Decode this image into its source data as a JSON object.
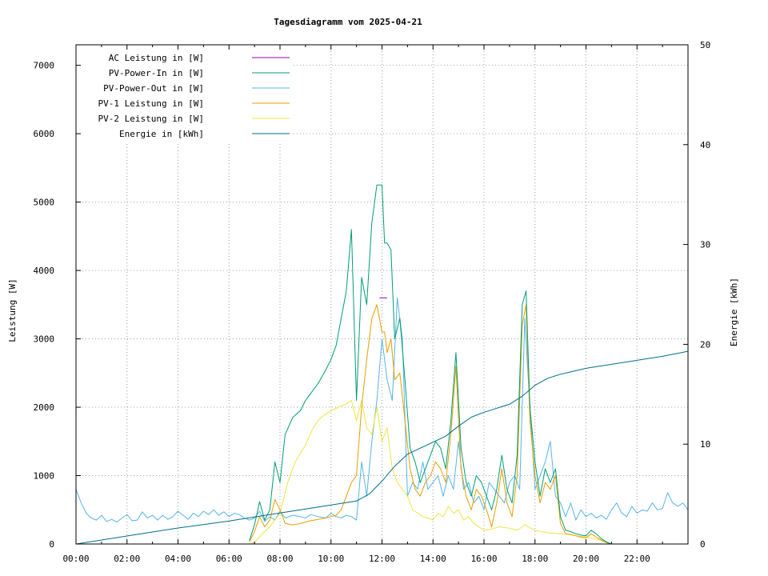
{
  "chart_data": {
    "type": "line",
    "title": "Tagesdiagramm vom 2025-04-21",
    "ylabel": "Leistung [W]",
    "y2label": "Energie [kWh]",
    "xlim": [
      0,
      24
    ],
    "ylim": [
      0,
      7300
    ],
    "y2lim": [
      0,
      50
    ],
    "x_ticks": [
      "00:00",
      "02:00",
      "04:00",
      "06:00",
      "08:00",
      "10:00",
      "12:00",
      "14:00",
      "16:00",
      "18:00",
      "20:00",
      "22:00"
    ],
    "y_ticks": [
      0,
      1000,
      2000,
      3000,
      4000,
      5000,
      6000,
      7000
    ],
    "y2_ticks": [
      0,
      10,
      20,
      30,
      40,
      50
    ],
    "grid": true,
    "legend": "top-left",
    "series": [
      {
        "name": "AC Leistung in [W]",
        "color": "#9400d3",
        "axis": "y",
        "x": [
          11.9,
          12.2
        ],
        "y": [
          3600,
          3600
        ]
      },
      {
        "name": "PV-Power-In in [W]",
        "color": "#009e73",
        "axis": "y",
        "x": [
          6.8,
          7.0,
          7.2,
          7.4,
          7.6,
          7.8,
          8.0,
          8.2,
          8.5,
          8.8,
          9.0,
          9.2,
          9.5,
          9.8,
          10.0,
          10.2,
          10.4,
          10.6,
          10.8,
          11.0,
          11.2,
          11.4,
          11.6,
          11.8,
          12.0,
          12.1,
          12.2,
          12.35,
          12.5,
          12.7,
          12.9,
          13.1,
          13.3,
          13.5,
          13.7,
          13.9,
          14.1,
          14.3,
          14.5,
          14.7,
          14.9,
          15.1,
          15.3,
          15.5,
          15.7,
          15.9,
          16.1,
          16.3,
          16.5,
          16.7,
          16.9,
          17.1,
          17.3,
          17.5,
          17.65,
          17.8,
          18.0,
          18.2,
          18.4,
          18.6,
          18.8,
          19.0,
          19.2,
          19.4,
          19.6,
          19.8,
          20.0,
          20.2,
          20.4,
          20.6,
          20.8,
          21.0
        ],
        "y": [
          50,
          280,
          620,
          350,
          500,
          1200,
          900,
          1600,
          1850,
          1950,
          2100,
          2200,
          2350,
          2550,
          2700,
          2900,
          3300,
          3700,
          4600,
          2100,
          3900,
          3500,
          4700,
          5250,
          5250,
          4400,
          4400,
          4300,
          3000,
          3300,
          2400,
          1400,
          1200,
          900,
          1100,
          1300,
          1500,
          1400,
          1100,
          1800,
          2800,
          1400,
          900,
          700,
          1000,
          900,
          700,
          500,
          800,
          1300,
          800,
          600,
          1300,
          3500,
          3700,
          2000,
          1200,
          700,
          1100,
          900,
          1100,
          400,
          200,
          180,
          150,
          130,
          120,
          200,
          150,
          80,
          30,
          0
        ]
      },
      {
        "name": "PV-Power-Out in [W]",
        "color": "#56b4e9",
        "axis": "y",
        "x": [
          0.0,
          0.2,
          0.4,
          0.6,
          0.8,
          1.0,
          1.2,
          1.4,
          1.6,
          1.8,
          2.0,
          2.2,
          2.4,
          2.6,
          2.8,
          3.0,
          3.2,
          3.4,
          3.6,
          3.8,
          4.0,
          4.2,
          4.4,
          4.6,
          4.8,
          5.0,
          5.2,
          5.4,
          5.6,
          5.8,
          6.0,
          6.2,
          6.4,
          6.6,
          6.8,
          7.0,
          7.2,
          7.4,
          7.6,
          7.8,
          8.0,
          8.2,
          8.5,
          8.8,
          9.0,
          9.2,
          9.5,
          9.8,
          10.0,
          10.2,
          10.4,
          10.6,
          10.8,
          11.0,
          11.2,
          11.4,
          11.6,
          11.8,
          12.0,
          12.2,
          12.4,
          12.6,
          12.8,
          13.0,
          13.2,
          13.4,
          13.6,
          13.8,
          14.0,
          14.2,
          14.4,
          14.6,
          14.8,
          15.0,
          15.2,
          15.4,
          15.6,
          15.8,
          16.0,
          16.2,
          16.4,
          16.6,
          16.8,
          17.0,
          17.2,
          17.4,
          17.6,
          17.8,
          18.0,
          18.2,
          18.4,
          18.6,
          18.8,
          19.0,
          19.2,
          19.4,
          19.6,
          19.8,
          20.0,
          20.2,
          20.4,
          20.6,
          20.8,
          21.0,
          21.2,
          21.4,
          21.6,
          21.8,
          22.0,
          22.2,
          22.4,
          22.6,
          22.8,
          23.0,
          23.2,
          23.4,
          23.6,
          23.8,
          24.0
        ],
        "y": [
          800,
          600,
          450,
          380,
          350,
          420,
          330,
          360,
          320,
          380,
          430,
          340,
          350,
          470,
          380,
          420,
          350,
          420,
          360,
          400,
          480,
          420,
          360,
          450,
          400,
          480,
          430,
          500,
          420,
          470,
          400,
          450,
          430,
          380,
          350,
          380,
          480,
          330,
          400,
          350,
          480,
          380,
          420,
          400,
          380,
          430,
          400,
          380,
          450,
          400,
          380,
          420,
          400,
          350,
          1200,
          700,
          1500,
          2100,
          3000,
          2400,
          2100,
          3600,
          3000,
          700,
          900,
          800,
          1200,
          800,
          900,
          1000,
          700,
          1000,
          800,
          1500,
          800,
          900,
          600,
          700,
          500,
          900,
          800,
          700,
          600,
          900,
          1000,
          800,
          3300,
          2000,
          800,
          1000,
          1200,
          1500,
          700,
          600,
          400,
          600,
          350,
          500,
          400,
          450,
          380,
          420,
          360,
          500,
          600,
          450,
          400,
          550,
          450,
          500,
          480,
          600,
          500,
          520,
          750,
          600,
          550,
          600,
          500
        ]
      },
      {
        "name": "PV-1 Leistung in [W]",
        "color": "#e69f00",
        "axis": "y",
        "x": [
          6.8,
          7.0,
          7.2,
          7.4,
          7.6,
          7.8,
          8.0,
          8.2,
          8.5,
          8.8,
          9.0,
          9.2,
          9.5,
          9.8,
          10.0,
          10.2,
          10.4,
          10.6,
          10.8,
          11.0,
          11.2,
          11.4,
          11.6,
          11.8,
          12.0,
          12.1,
          12.2,
          12.35,
          12.5,
          12.7,
          12.9,
          13.1,
          13.3,
          13.5,
          13.7,
          13.9,
          14.1,
          14.3,
          14.5,
          14.7,
          14.9,
          15.1,
          15.3,
          15.5,
          15.7,
          15.9,
          16.1,
          16.3,
          16.5,
          16.7,
          16.9,
          17.1,
          17.3,
          17.5,
          17.65,
          17.8,
          18.0,
          18.2,
          18.4,
          18.6,
          18.8,
          19.0,
          19.2,
          19.4,
          19.6,
          19.8,
          20.0,
          20.2,
          20.4,
          20.6,
          20.8,
          21.0
        ],
        "y": [
          30,
          180,
          400,
          250,
          350,
          650,
          500,
          300,
          280,
          300,
          320,
          340,
          360,
          380,
          400,
          420,
          500,
          700,
          900,
          1000,
          2000,
          2700,
          3300,
          3500,
          3100,
          3100,
          2800,
          3000,
          2400,
          2500,
          1800,
          1100,
          800,
          700,
          900,
          1000,
          1200,
          1100,
          900,
          1600,
          2600,
          1100,
          700,
          500,
          800,
          700,
          500,
          250,
          600,
          1100,
          600,
          400,
          1000,
          3200,
          3500,
          1800,
          1000,
          600,
          900,
          800,
          1000,
          300,
          150,
          140,
          120,
          100,
          90,
          150,
          100,
          60,
          20,
          0
        ]
      },
      {
        "name": "PV-2 Leistung in [W]",
        "color": "#f0e442",
        "axis": "y",
        "x": [
          6.8,
          7.0,
          7.3,
          7.6,
          8.0,
          8.3,
          8.6,
          9.0,
          9.3,
          9.6,
          10.0,
          10.3,
          10.6,
          10.8,
          11.0,
          11.2,
          11.4,
          11.6,
          11.8,
          12.0,
          12.2,
          12.4,
          12.6,
          12.8,
          13.0,
          13.2,
          13.4,
          13.6,
          13.8,
          14.0,
          14.2,
          14.4,
          14.6,
          14.8,
          15.0,
          15.2,
          15.4,
          15.6,
          15.8,
          16.0,
          16.3,
          16.6,
          17.0,
          17.3,
          17.6,
          18.0,
          18.3,
          18.6,
          19.0,
          19.3,
          19.6,
          20.0,
          20.3,
          20.6,
          20.8,
          21.0
        ],
        "y": [
          0,
          20,
          150,
          250,
          450,
          900,
          1200,
          1450,
          1700,
          1850,
          1950,
          2000,
          2050,
          2100,
          1800,
          2100,
          1700,
          1600,
          2000,
          1500,
          1700,
          1100,
          900,
          800,
          700,
          500,
          450,
          400,
          380,
          350,
          450,
          400,
          550,
          450,
          500,
          350,
          400,
          300,
          250,
          200,
          220,
          250,
          230,
          200,
          280,
          200,
          180,
          160,
          150,
          140,
          120,
          100,
          80,
          50,
          20,
          0
        ]
      },
      {
        "name": "Energie in [kWh]",
        "color": "#006d8f",
        "axis": "y2",
        "x": [
          0,
          2,
          4,
          6,
          7,
          8,
          9,
          10,
          11,
          11.5,
          12,
          12.5,
          13,
          13.5,
          14,
          14.5,
          15,
          15.5,
          16,
          16.5,
          17,
          17.5,
          18,
          18.5,
          19,
          19.5,
          20,
          20.5,
          21,
          22,
          23,
          24
        ],
        "y": [
          0,
          0.8,
          1.6,
          2.3,
          2.7,
          3.1,
          3.5,
          3.9,
          4.3,
          5.0,
          6.3,
          7.8,
          9.0,
          9.6,
          10.2,
          10.8,
          11.8,
          12.7,
          13.2,
          13.6,
          14.0,
          14.8,
          15.9,
          16.6,
          17.0,
          17.3,
          17.6,
          17.8,
          18.0,
          18.4,
          18.8,
          19.3
        ]
      }
    ]
  }
}
